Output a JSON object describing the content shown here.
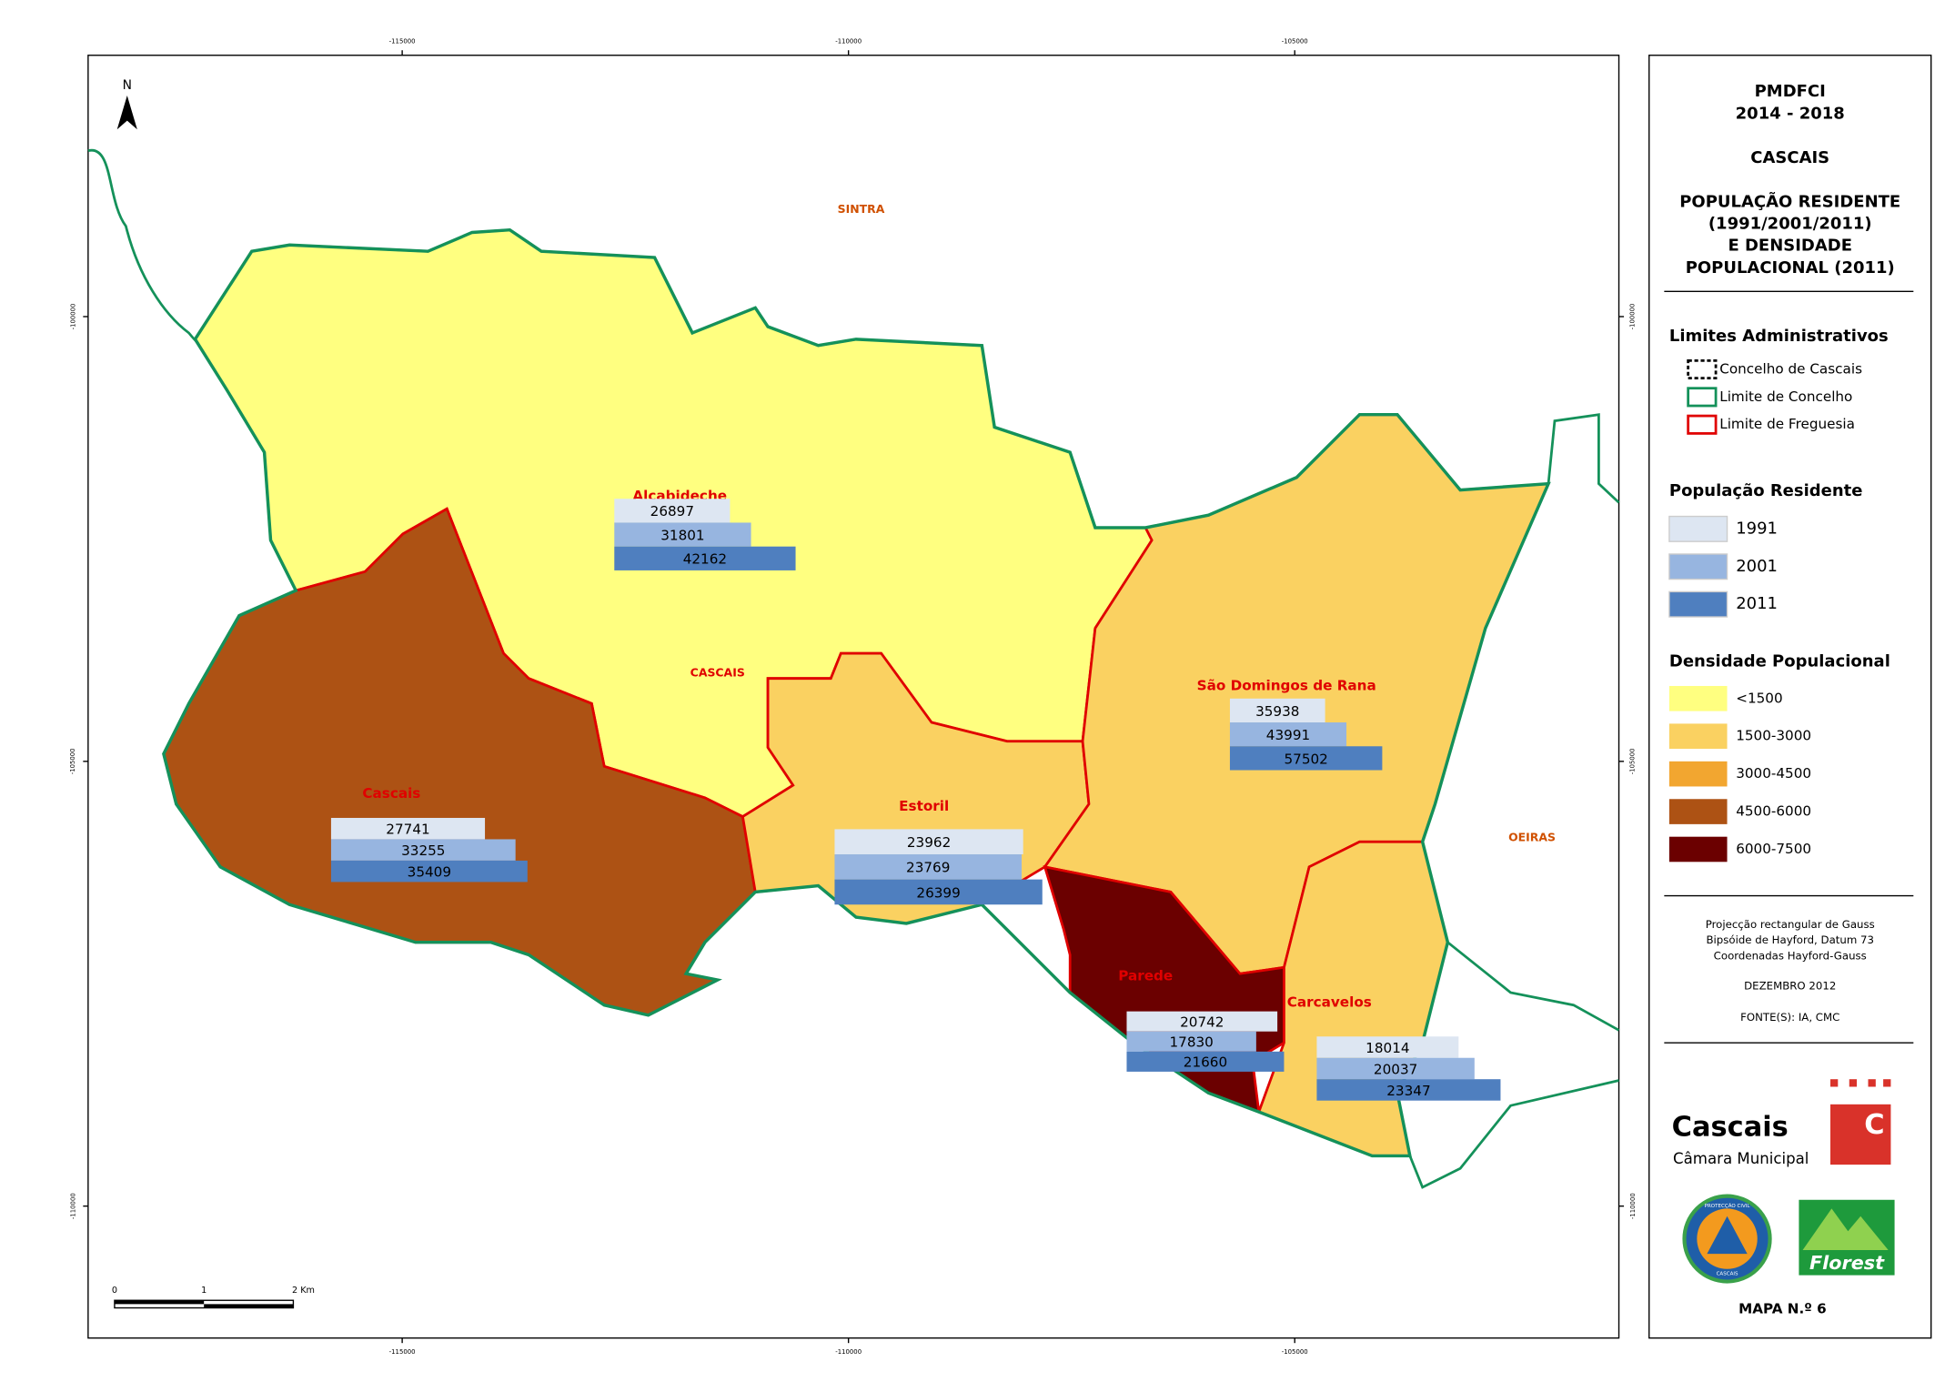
{
  "header": {
    "title": "PMDFCI",
    "period": "2014 - 2018",
    "municipality": "CASCAIS",
    "subtitle": [
      "POPULAÇÃO RESIDENTE",
      "(1991/2001/2011)",
      "E DENSIDADE",
      "POPULACIONAL (2011)"
    ]
  },
  "legend": {
    "admin_title": "Limites Administrativos",
    "admin_items": [
      "Concelho de Cascais",
      "Limite de Concelho",
      "Limite de Freguesia"
    ],
    "population_title": "População Residente",
    "years": [
      "1991",
      "2001",
      "2011"
    ],
    "year_colors": [
      "#dde6f2",
      "#97b5e0",
      "#4f7fbf"
    ],
    "density_title": "Densidade Populacional",
    "density_classes": [
      "<1500",
      "1500-3000",
      "3000-4500",
      "4500-6000",
      "6000-7500"
    ],
    "density_colors": [
      "#ffff80",
      "#fad161",
      "#f2a630",
      "#ad5214",
      "#6b0000"
    ]
  },
  "notes": [
    "Projecção rectangular de Gauss",
    "Bipsóide de Hayford, Datum 73",
    "Coordenadas Hayford-Gauss"
  ],
  "date": "DEZEMBRO 2012",
  "sources": "FONTE(S): IA, CMC",
  "map_number": "MAPA N.º 6",
  "logos": {
    "cascais": "Cascais",
    "cascais_sub": "Câmara Municipal",
    "cascais_mark": "C",
    "civil": "PROTECÇÃO CIVIL",
    "civil_sub": "CASCAIS",
    "florest": "Florest"
  },
  "map": {
    "north": "N",
    "places": [
      "SINTRA",
      "CASCAIS",
      "OEIRAS"
    ],
    "parishes": [
      {
        "name": "Alcabideche",
        "color": "#ffff80",
        "population": [
          26897,
          31801,
          42162
        ]
      },
      {
        "name": "Cascais",
        "color": "#ad5214",
        "population": [
          27741,
          33255,
          35409
        ]
      },
      {
        "name": "Estoril",
        "color": "#fad161",
        "population": [
          23962,
          23769,
          26399
        ]
      },
      {
        "name": "São Domingos de Rana",
        "color": "#fad161",
        "population": [
          35938,
          43991,
          57502
        ]
      },
      {
        "name": "Parede",
        "color": "#6b0000",
        "population": [
          20742,
          17830,
          21660
        ]
      },
      {
        "name": "Carcavelos",
        "color": "#fad161",
        "population": [
          18014,
          20037,
          23347
        ]
      }
    ],
    "x_ticks": [
      -115000,
      -110000,
      -105000
    ],
    "y_ticks": [
      -100000,
      -105000,
      -110000
    ],
    "scale_labels": [
      "0",
      "1",
      "2 Km"
    ]
  }
}
